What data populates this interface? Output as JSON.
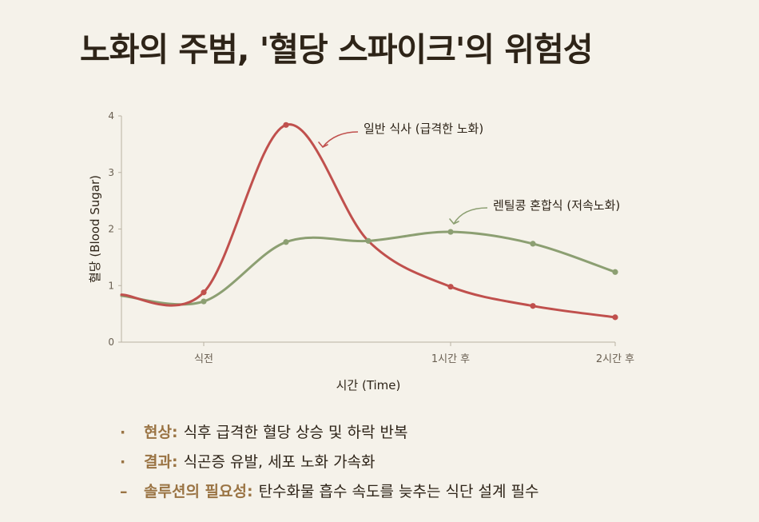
{
  "title": "노화의 주범, '혈당 스파이크'의 위험성",
  "chart_data": {
    "type": "line",
    "ylabel": "혈당 (Blood Sugar)",
    "xlabel": "시간 (Time)",
    "ylim": [
      0,
      4
    ],
    "yticks": [
      "0",
      "1",
      "2",
      "3",
      "4"
    ],
    "xticks": [
      {
        "x": 1,
        "label": "식전"
      },
      {
        "x": 4,
        "label": "1시간 후"
      },
      {
        "x": 6,
        "label": "2시간 후"
      }
    ],
    "x_range": [
      0,
      6
    ],
    "series": [
      {
        "name": "일반 식사 (급격한 노화)",
        "color": "#c0504d",
        "points": [
          [
            0,
            0.84
          ],
          [
            1,
            0.88
          ],
          [
            2,
            3.84
          ],
          [
            3,
            1.79
          ],
          [
            4,
            0.98
          ],
          [
            5,
            0.64
          ],
          [
            6,
            0.44
          ]
        ],
        "markers": [
          1,
          2,
          4,
          5,
          6
        ]
      },
      {
        "name": "렌틸콩 혼합식 (저속노화)",
        "color": "#8c9f72",
        "points": [
          [
            0,
            0.82
          ],
          [
            1,
            0.72
          ],
          [
            2,
            1.77
          ],
          [
            3,
            1.79
          ],
          [
            4,
            1.95
          ],
          [
            5,
            1.74
          ],
          [
            6,
            1.24
          ]
        ],
        "markers": [
          1,
          2,
          3,
          4,
          5,
          6
        ]
      }
    ]
  },
  "bullets": [
    {
      "marker": "·",
      "label": "현상:",
      "text": "식후 급격한 혈당 상승 및 하락 반복"
    },
    {
      "marker": "·",
      "label": "결과:",
      "text": "식곤증 유발, 세포 노화 가속화"
    },
    {
      "marker": "–",
      "label": "솔루션의 필요성:",
      "text": "탄수화물 흡수 속도를 늦추는 식단 설계 필수"
    }
  ]
}
